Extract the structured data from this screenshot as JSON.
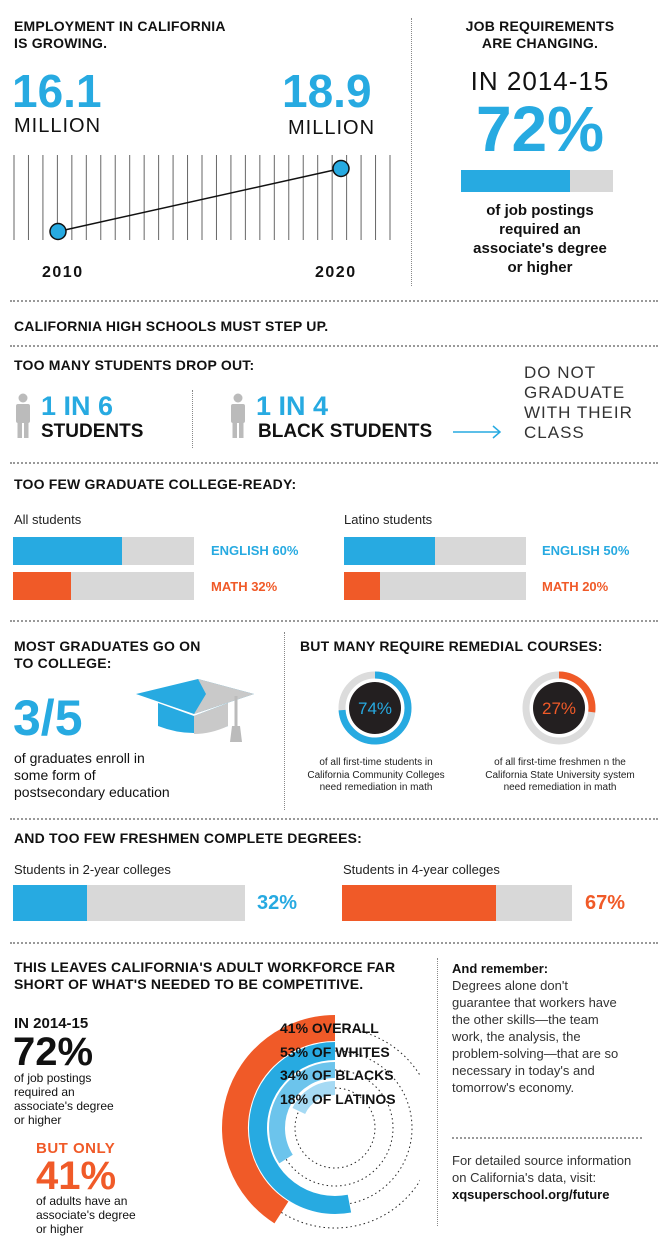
{
  "employment": {
    "title_line1": "EMPLOYMENT IN CALIFORNIA",
    "title_line2": "IS GROWING.",
    "start_value": "16.1",
    "start_unit": "MILLION",
    "end_value": "18.9",
    "end_unit": "MILLION",
    "start_year": "2010",
    "end_year": "2020"
  },
  "job_req": {
    "title_line1": "JOB REQUIREMENTS",
    "title_line2": "ARE CHANGING.",
    "period": "IN 2014-15",
    "percent": "72%",
    "percent_value": 72,
    "desc_line1": "of job postings",
    "desc_line2": "required an",
    "desc_line3": "associate's degree",
    "desc_line4": "or higher"
  },
  "high_schools": {
    "title": "CALIFORNIA HIGH SCHOOLS MUST STEP UP."
  },
  "dropout": {
    "title": "TOO MANY STUDENTS DROP OUT:",
    "stat1_num": "1 IN 6",
    "stat1_label": "STUDENTS",
    "stat2_num": "1 IN 4",
    "stat2_label": "BLACK STUDENTS",
    "outcome_line1": "DO NOT",
    "outcome_line2": "GRADUATE",
    "outcome_line3": "WITH THEIR",
    "outcome_line4": "CLASS"
  },
  "college_ready": {
    "title": "TOO FEW GRADUATE COLLEGE-READY:",
    "groups": [
      {
        "label": "All students",
        "english_label": "ENGLISH 60%",
        "english": 60,
        "math_label": "MATH 32%",
        "math": 32
      },
      {
        "label": "Latino students",
        "english_label": "ENGLISH 50%",
        "english": 50,
        "math_label": "MATH 20%",
        "math": 20
      }
    ]
  },
  "college": {
    "title_line1": "MOST GRADUATES GO ON",
    "title_line2": "TO COLLEGE:",
    "fraction": "3/5",
    "desc_line1": "of graduates enroll in",
    "desc_line2": "some form of",
    "desc_line3": "postsecondary education"
  },
  "remedial": {
    "title": "BUT MANY REQUIRE REMEDIAL COURSES:",
    "items": [
      {
        "percent_label": "74%",
        "value": 74,
        "desc_line1": "of all first-time students in",
        "desc_line2": "California Community Colleges",
        "desc_line3": "need remediation in math"
      },
      {
        "percent_label": "27%",
        "value": 27,
        "desc_line1": "of all first-time freshmen n the",
        "desc_line2": "California State University system",
        "desc_line3": "need remediation in math"
      }
    ]
  },
  "degrees": {
    "title": "AND TOO FEW FRESHMEN COMPLETE DEGREES:",
    "items": [
      {
        "label": "Students in 2-year colleges",
        "percent_label": "32%",
        "value": 32
      },
      {
        "label": "Students in 4-year colleges",
        "percent_label": "67%",
        "value": 67
      }
    ]
  },
  "workforce": {
    "title_line1": "THIS LEAVES CALIFORNIA'S ADULT WORKFORCE FAR",
    "title_line2": "SHORT OF WHAT'S NEEDED TO BE COMPETITIVE.",
    "period": "IN 2014-15",
    "jobs_percent": "72%",
    "jobs_desc_line1": "of job postings",
    "jobs_desc_line2": "required an",
    "jobs_desc_line3": "associate's degree",
    "jobs_desc_line4": "or higher",
    "but_only": "BUT ONLY",
    "adults_percent": "41%",
    "adults_desc_line1": "of adults have an",
    "adults_desc_line2": "associate's degree",
    "adults_desc_line3": "or higher"
  },
  "remember": {
    "title": "And remember:",
    "line1": "Degrees alone don't",
    "line2": "guarantee that workers have",
    "line3": "the other skills—the team",
    "line4": "work, the analysis, the",
    "line5": "problem-solving—that are so",
    "line6": "necessary in today's and",
    "line7": "tomorrow's economy."
  },
  "source": {
    "line1": "For detailed source information",
    "line2": "on California's data, visit:",
    "url": "xqsuperschool.org/future"
  },
  "colors": {
    "blue": "#27aae1",
    "orange": "#f05a28",
    "gray": "#d8d8d8",
    "dark": "#231f20"
  },
  "chart_data": [
    {
      "type": "line",
      "x": [
        "2010",
        "2020"
      ],
      "series": [
        {
          "values": [
            16.1,
            18.9
          ]
        }
      ],
      "title": "EMPLOYMENT IN CALIFORNIA IS GROWING.",
      "ylabel": "MILLION"
    },
    {
      "type": "bar",
      "title": "TOO FEW GRADUATE COLLEGE-READY:",
      "categories": [
        "All students",
        "Latino students"
      ],
      "series": [
        {
          "name": "ENGLISH",
          "values": [
            60,
            50
          ]
        },
        {
          "name": "MATH",
          "values": [
            32,
            20
          ]
        }
      ],
      "ylim": [
        0,
        100
      ]
    },
    {
      "type": "pie",
      "title": "BUT MANY REQUIRE REMEDIAL COURSES:",
      "categories": [
        "California Community Colleges",
        "California State University system"
      ],
      "values": [
        74,
        27
      ]
    },
    {
      "type": "bar",
      "title": "AND TOO FEW FRESHMEN COMPLETE DEGREES:",
      "categories": [
        "Students in 2-year colleges",
        "Students in 4-year colleges"
      ],
      "values": [
        32,
        67
      ],
      "ylim": [
        0,
        100
      ]
    },
    {
      "type": "pie",
      "title": "THIS LEAVES CALIFORNIA'S ADULT WORKFORCE FAR SHORT OF WHAT'S NEEDED TO BE COMPETITIVE.",
      "categories": [
        "OVERALL",
        "OF WHITES",
        "OF BLACKS",
        "OF LATINOS"
      ],
      "values": [
        41,
        53,
        34,
        18
      ],
      "labels": [
        "41% OVERALL",
        "53% OF WHITES",
        "34% OF BLACKS",
        "18% OF LATINOS"
      ]
    }
  ]
}
